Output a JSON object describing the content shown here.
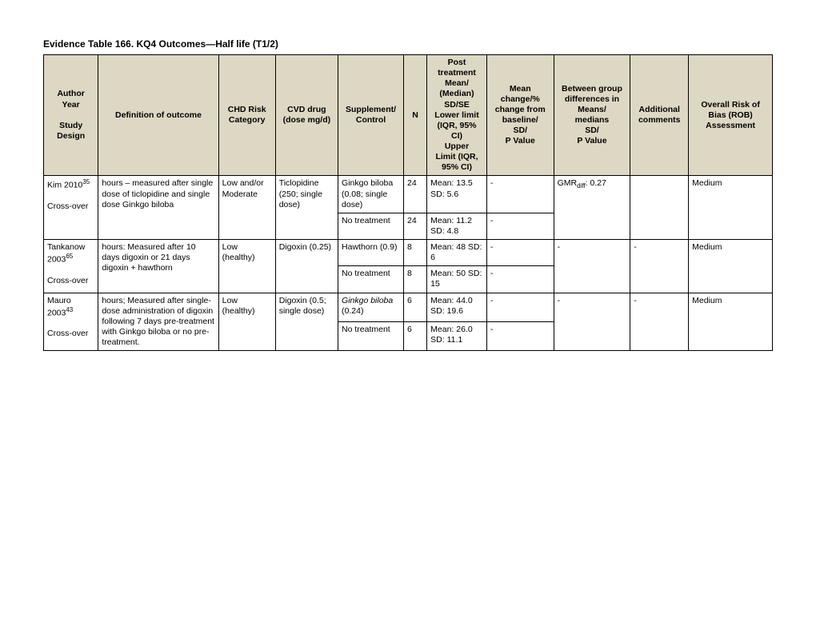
{
  "title": "Evidence Table 166. KQ4 Outcomes—Half life (T1/2)",
  "columns": {
    "author": "Author\nYear\n\nStudy Design",
    "def": "Definition of outcome",
    "chd": "CHD Risk Category",
    "cvd": "CVD drug (dose mg/d)",
    "supp": "Supplement/ Control",
    "n": "N",
    "post": "Post treatment Mean/ (Median) SD/SE Lower limit (IQR, 95% CI) Upper Limit (IQR, 95% CI)",
    "meanchg": "Mean change/% change from baseline/ SD/ P Value",
    "between": "Between group differences in Means/ medians SD/ P Value",
    "additional": "Additional comments",
    "rob": "Overall Risk of Bias (ROB) Assessment"
  },
  "row1": {
    "author_study": "Kim 2010",
    "author_ref": "35",
    "design": "Cross-over",
    "def": "hours – measured after single dose of ticlopidine and single dose Ginkgo biloba",
    "chd": "Low and/or Moderate",
    "cvd": "Ticlopidine (250; single dose)",
    "supp_a": "Ginkgo biloba (0.08; single dose)",
    "n_a": "24",
    "post_a": "Mean: 13.5 SD: 5.6",
    "meanchg_a": "-",
    "between": "GMR",
    "between_sub": "diff",
    "between_val": ": 0.27",
    "additional": "",
    "rob": "Medium",
    "supp_b": "No treatment",
    "n_b": "24",
    "post_b": "Mean: 11.2 SD: 4.8",
    "meanchg_b": "-"
  },
  "row2": {
    "author_study": "Tankanow 2003",
    "author_ref": "65",
    "design": "Cross-over",
    "def": "hours: Measured after 10 days digoxin or 21 days digoxin + hawthorn",
    "chd": "Low (healthy)",
    "cvd": "Digoxin (0.25)",
    "supp_a": "Hawthorn (0.9)",
    "n_a": "8",
    "post_a": "Mean: 48 SD: 6",
    "meanchg_a": "-",
    "between": "-",
    "additional": "-",
    "rob": "Medium",
    "supp_b": "No treatment",
    "n_b": "8",
    "post_b": "Mean: 50 SD: 15",
    "meanchg_b": "-"
  },
  "row3": {
    "author_study": "Mauro 2003",
    "author_ref": "43",
    "design": "Cross-over",
    "def": "hours; Measured after single-dose administration of digoxin following 7 days pre-treatment with Ginkgo biloba or no pre-treatment.",
    "chd": "Low (healthy)",
    "cvd": "Digoxin (0.5; single dose)",
    "supp_a_italic": "Ginkgo biloba",
    "supp_a_rest": " (0.24)",
    "n_a": "6",
    "post_a": "Mean: 44.0 SD: 19.6",
    "meanchg_a": "-",
    "between": "-",
    "additional": "-",
    "rob": "Medium",
    "supp_b": "No treatment",
    "n_b": "6",
    "post_b": "Mean: 26.0 SD: 11.1",
    "meanchg_b": "-"
  }
}
